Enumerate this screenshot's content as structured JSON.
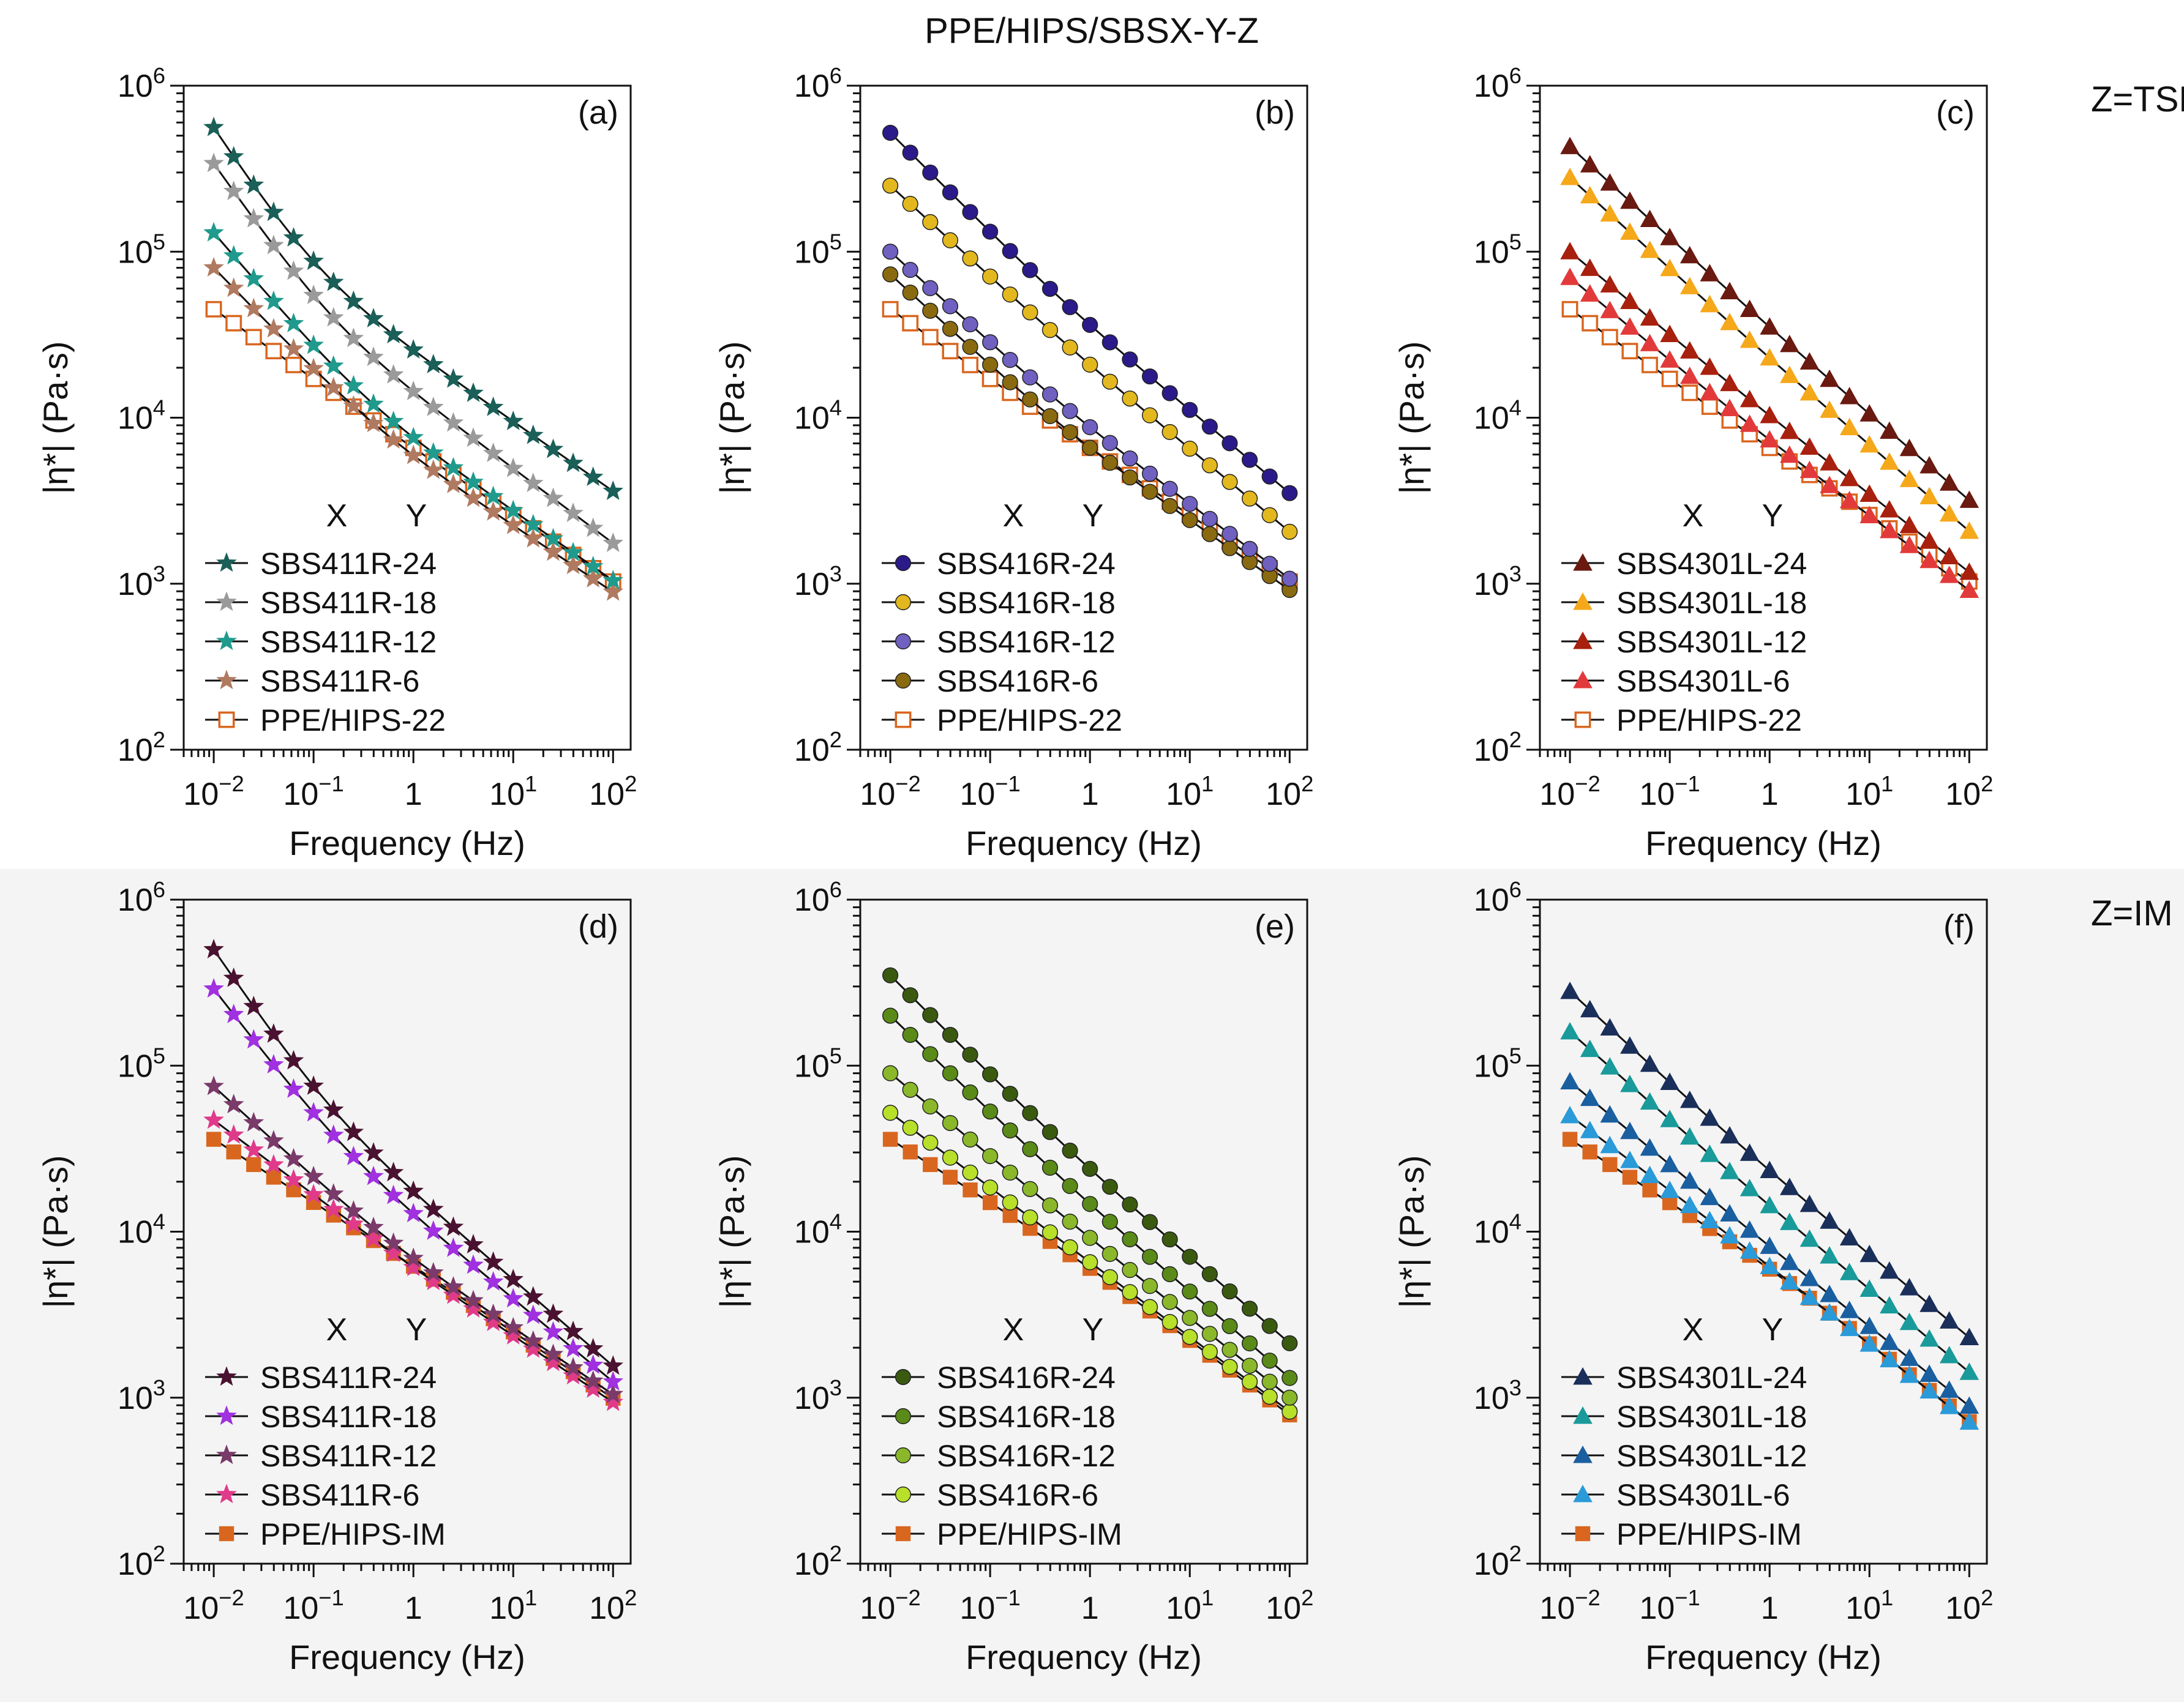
{
  "figure": {
    "title": "PPE/HIPS/SBSX-Y-Z",
    "row_labels": [
      "Z=TSE",
      "Z=IM"
    ]
  },
  "colors": {
    "ref_tse": "#d9661f",
    "ref_im": "#d9661f"
  },
  "chart_data": [
    {
      "type": "line",
      "panel": "(a)",
      "xlabel": "Frequency (Hz)",
      "ylabel": "|η*| (Pa·s)",
      "xscale": "log",
      "yscale": "log",
      "xlim": [
        0.005,
        150
      ],
      "ylim": [
        100,
        1000000
      ],
      "x_ticks": [
        "10-2",
        "10-1",
        "1",
        "101",
        "102"
      ],
      "y_ticks": [
        "102",
        "103",
        "104",
        "105",
        "106"
      ],
      "legend_header": [
        "X",
        "Y"
      ],
      "legend_position": "bottom-left",
      "series": [
        {
          "name": "SBS411R-24",
          "color": "#1a5f58",
          "marker": "star-filled",
          "fit": [
            560000.0,
            -0.92,
            -0.42,
            0.1,
            1.2
          ]
        },
        {
          "name": "SBS411R-18",
          "color": "#9a9a9a",
          "marker": "star-filled",
          "fit": [
            340000.0,
            -0.86,
            -0.45,
            0.15,
            1.2
          ]
        },
        {
          "name": "SBS411R-12",
          "color": "#1f9a8c",
          "marker": "star-filled",
          "fit": [
            130000.0,
            -0.7,
            -0.42,
            0.3,
            1.2
          ]
        },
        {
          "name": "SBS411R-6",
          "color": "#b07a60",
          "marker": "star-filled",
          "fit": [
            80000.0,
            -0.62,
            -0.4,
            0.4,
            1.2
          ]
        },
        {
          "name": "PPE/HIPS-22",
          "color": "#d9661f",
          "marker": "square-open",
          "fit": [
            45000.0,
            -0.42,
            -0.4,
            1.0,
            1.2
          ]
        }
      ]
    },
    {
      "type": "line",
      "panel": "(b)",
      "xlabel": "Frequency (Hz)",
      "ylabel": "|η*| (Pa·s)",
      "xscale": "log",
      "yscale": "log",
      "xlim": [
        0.005,
        150
      ],
      "ylim": [
        100,
        1000000
      ],
      "x_ticks": [
        "10-2",
        "10-1",
        "1",
        "101",
        "102"
      ],
      "y_ticks": [
        "102",
        "103",
        "104",
        "105",
        "106"
      ],
      "legend_header": [
        "X",
        "Y"
      ],
      "legend_position": "bottom-left",
      "series": [
        {
          "name": "SBS416R-24",
          "color": "#2a1a8a",
          "marker": "circle-filled",
          "fit": [
            520000.0,
            -0.6,
            -0.5,
            0.5,
            1.2
          ]
        },
        {
          "name": "SBS416R-18",
          "color": "#e3b81e",
          "marker": "circle-filled",
          "fit": [
            250000.0,
            -0.55,
            -0.5,
            0.5,
            1.2
          ]
        },
        {
          "name": "SBS416R-12",
          "color": "#7060c0",
          "marker": "circle-filled",
          "fit": [
            100000.0,
            -0.55,
            -0.45,
            0.5,
            1.2
          ]
        },
        {
          "name": "SBS416R-6",
          "color": "#8a6a10",
          "marker": "circle-filled",
          "fit": [
            73000.0,
            -0.55,
            -0.42,
            0.5,
            1.2
          ]
        },
        {
          "name": "PPE/HIPS-22",
          "color": "#d9661f",
          "marker": "square-open",
          "fit": [
            45000.0,
            -0.42,
            -0.4,
            1.0,
            1.2
          ]
        }
      ]
    },
    {
      "type": "line",
      "panel": "(c)",
      "xlabel": "Frequency (Hz)",
      "ylabel": "|η*| (Pa·s)",
      "xscale": "log",
      "yscale": "log",
      "xlim": [
        0.005,
        150
      ],
      "ylim": [
        100,
        1000000
      ],
      "x_ticks": [
        "10-2",
        "10-1",
        "1",
        "101",
        "102"
      ],
      "y_ticks": [
        "102",
        "103",
        "104",
        "105",
        "106"
      ],
      "legend_header": [
        "X",
        "Y"
      ],
      "legend_position": "bottom-left",
      "series": [
        {
          "name": "SBS4301L-24",
          "color": "#6a1a10",
          "marker": "triangle-filled",
          "fit": [
            430000.0,
            -0.55,
            -0.52,
            0.5,
            1.2
          ]
        },
        {
          "name": "SBS4301L-18",
          "color": "#f5a81a",
          "marker": "triangle-filled",
          "fit": [
            280000.0,
            -0.55,
            -0.52,
            0.5,
            1.2
          ]
        },
        {
          "name": "SBS4301L-12",
          "color": "#a8200e",
          "marker": "triangle-filled",
          "fit": [
            100000.0,
            -0.5,
            -0.47,
            0.5,
            1.2
          ]
        },
        {
          "name": "SBS4301L-6",
          "color": "#e23a3a",
          "marker": "triangle-filled",
          "fit": [
            70000.0,
            -0.5,
            -0.45,
            0.5,
            1.2
          ]
        },
        {
          "name": "PPE/HIPS-22",
          "color": "#d9661f",
          "marker": "square-open",
          "fit": [
            45000.0,
            -0.42,
            -0.4,
            1.0,
            1.2
          ]
        }
      ]
    },
    {
      "type": "line",
      "panel": "(d)",
      "xlabel": "Frequency (Hz)",
      "ylabel": "|η*| (Pa·s)",
      "xscale": "log",
      "yscale": "log",
      "xlim": [
        0.005,
        150
      ],
      "ylim": [
        100,
        1000000
      ],
      "x_ticks": [
        "10-2",
        "10-1",
        "1",
        "101",
        "102"
      ],
      "y_ticks": [
        "102",
        "103",
        "104",
        "105",
        "106"
      ],
      "legend_header": [
        "X",
        "Y"
      ],
      "legend_position": "bottom-left",
      "series": [
        {
          "name": "SBS411R-24",
          "color": "#4a1230",
          "marker": "star-filled",
          "fit": [
            500000.0,
            -0.88,
            -0.52,
            0.15,
            1.2
          ]
        },
        {
          "name": "SBS411R-18",
          "color": "#a030e0",
          "marker": "star-filled",
          "fit": [
            290000.0,
            -0.78,
            -0.5,
            0.2,
            1.2
          ]
        },
        {
          "name": "SBS411R-12",
          "color": "#7a3a6a",
          "marker": "star-filled",
          "fit": [
            75000.0,
            -0.55,
            -0.4,
            0.5,
            1.2
          ]
        },
        {
          "name": "SBS411R-6",
          "color": "#e03a8a",
          "marker": "star-filled",
          "fit": [
            47000.0,
            -0.45,
            -0.4,
            1.0,
            1.2
          ]
        },
        {
          "name": "PPE/HIPS-IM",
          "color": "#d9661f",
          "marker": "square-filled",
          "fit": [
            36000.0,
            -0.38,
            -0.4,
            1.0,
            1.2
          ]
        }
      ]
    },
    {
      "type": "line",
      "panel": "(e)",
      "xlabel": "Frequency (Hz)",
      "ylabel": "|η*| (Pa·s)",
      "xscale": "log",
      "yscale": "log",
      "xlim": [
        0.005,
        150
      ],
      "ylim": [
        100,
        1000000
      ],
      "x_ticks": [
        "10-2",
        "10-1",
        "1",
        "101",
        "102"
      ],
      "y_ticks": [
        "102",
        "103",
        "104",
        "105",
        "106"
      ],
      "legend_header": [
        "X",
        "Y"
      ],
      "legend_position": "bottom-left",
      "series": [
        {
          "name": "SBS416R-24",
          "color": "#3a5a10",
          "marker": "circle-filled",
          "fit": [
            350000.0,
            -0.6,
            -0.52,
            0.5,
            1.2
          ]
        },
        {
          "name": "SBS416R-18",
          "color": "#5a8a18",
          "marker": "circle-filled",
          "fit": [
            200000.0,
            -0.58,
            -0.52,
            0.5,
            1.2
          ]
        },
        {
          "name": "SBS416R-12",
          "color": "#8ab82a",
          "marker": "circle-filled",
          "fit": [
            90000.0,
            -0.5,
            -0.48,
            0.5,
            1.2
          ]
        },
        {
          "name": "SBS416R-6",
          "color": "#b8e02a",
          "marker": "circle-filled",
          "fit": [
            52000.0,
            -0.45,
            -0.45,
            0.5,
            1.2
          ]
        },
        {
          "name": "PPE/HIPS-IM",
          "color": "#d9661f",
          "marker": "square-filled",
          "fit": [
            36000.0,
            -0.38,
            -0.45,
            1.0,
            1.2
          ]
        }
      ]
    },
    {
      "type": "line",
      "panel": "(f)",
      "xlabel": "Frequency (Hz)",
      "ylabel": "|η*| (Pa·s)",
      "xscale": "log",
      "yscale": "log",
      "xlim": [
        0.005,
        150
      ],
      "ylim": [
        100,
        1000000
      ],
      "x_ticks": [
        "10-2",
        "10-1",
        "1",
        "101",
        "102"
      ],
      "y_ticks": [
        "102",
        "103",
        "104",
        "105",
        "106"
      ],
      "legend_header": [
        "X",
        "Y"
      ],
      "legend_position": "bottom-left",
      "series": [
        {
          "name": "SBS4301L-24",
          "color": "#1a2f5a",
          "marker": "triangle-filled",
          "fit": [
            280000.0,
            -0.55,
            -0.5,
            0.5,
            1.2
          ]
        },
        {
          "name": "SBS4301L-18",
          "color": "#1a9a9a",
          "marker": "triangle-filled",
          "fit": [
            160000.0,
            -0.53,
            -0.5,
            0.5,
            1.2
          ]
        },
        {
          "name": "SBS4301L-12",
          "color": "#1a5fa0",
          "marker": "triangle-filled",
          "fit": [
            80000.0,
            -0.5,
            -0.48,
            0.5,
            1.2
          ]
        },
        {
          "name": "SBS4301L-6",
          "color": "#2a9ad8",
          "marker": "triangle-filled",
          "fit": [
            50000.0,
            -0.45,
            -0.47,
            0.5,
            1.2
          ]
        },
        {
          "name": "PPE/HIPS-IM",
          "color": "#d9661f",
          "marker": "square-filled",
          "fit": [
            36000.0,
            -0.38,
            -0.47,
            1.0,
            1.2
          ]
        }
      ]
    }
  ]
}
